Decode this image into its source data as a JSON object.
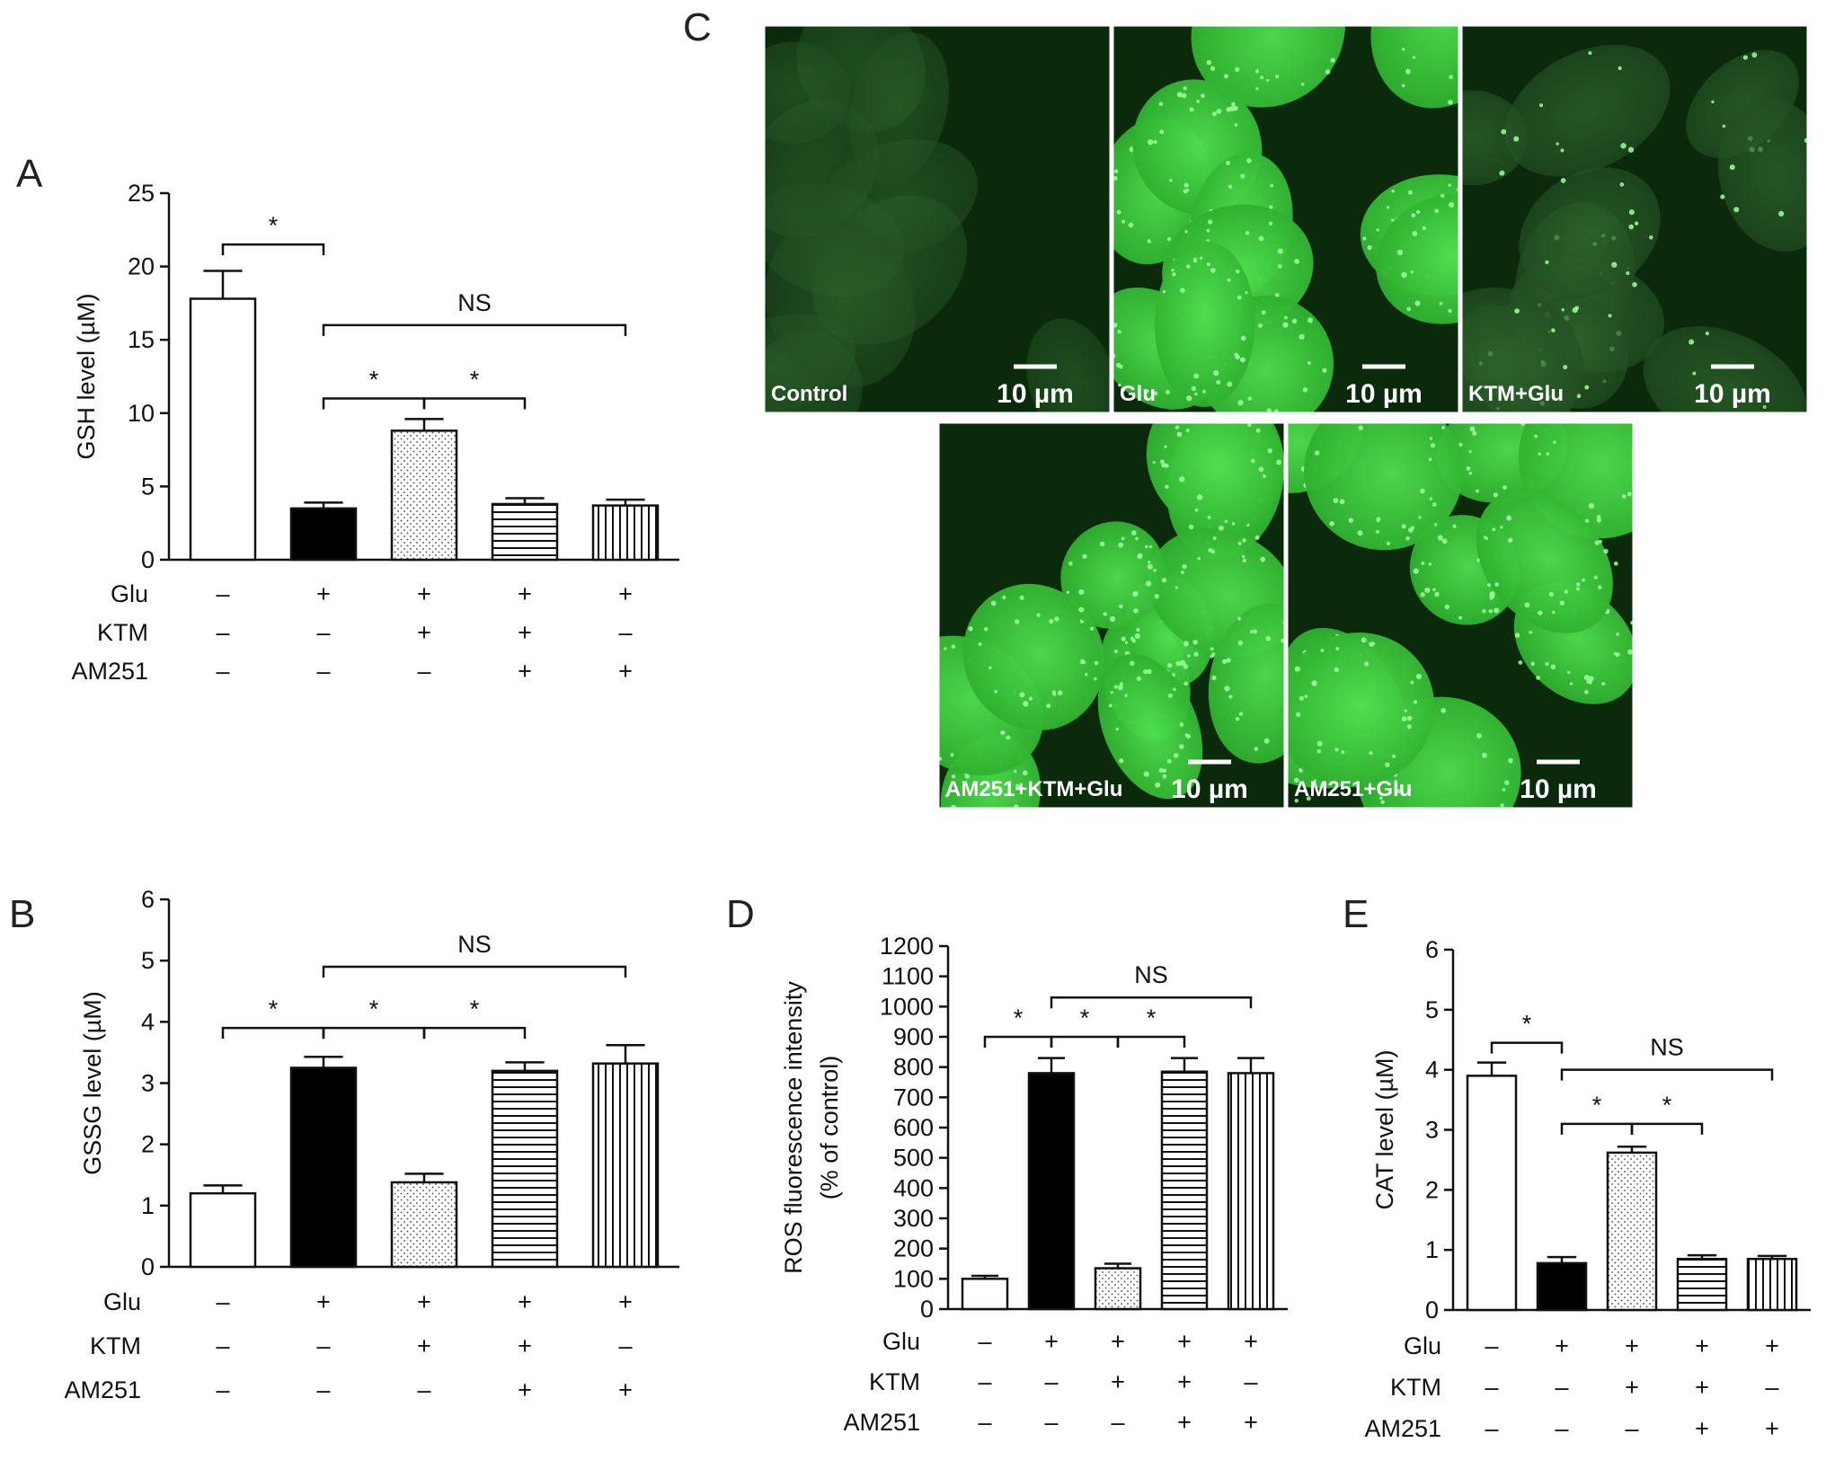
{
  "panel_letters": {
    "A": "A",
    "B": "B",
    "C": "C",
    "D": "D",
    "E": "E"
  },
  "condition_labels": [
    "Glu",
    "KTM",
    "AM251"
  ],
  "plus": "+",
  "minus": "–",
  "colors": {
    "fill_black": "#000000",
    "stroke": "#111111",
    "fluor_dark": "#0b2a0b",
    "fluor_bright": "#3bd43b"
  },
  "chart_data": [
    {
      "id": "A",
      "type": "bar",
      "ylabel": "GSH level (µM)",
      "ylim": [
        0,
        25
      ],
      "yticks": [
        0,
        5,
        10,
        15,
        20,
        25
      ],
      "categories": [
        "Control",
        "Glu",
        "KTM+Glu",
        "AM251+KTM+Glu",
        "AM251+Glu"
      ],
      "values": [
        17.8,
        3.5,
        8.8,
        3.8,
        3.7
      ],
      "errors": [
        1.9,
        0.4,
        0.8,
        0.4,
        0.4
      ],
      "fills": [
        "white",
        "black",
        "dots",
        "hlines",
        "vlines"
      ],
      "conditions": {
        "Glu": [
          "-",
          "+",
          "+",
          "+",
          "+"
        ],
        "KTM": [
          "-",
          "-",
          "+",
          "+",
          "-"
        ],
        "AM251": [
          "-",
          "-",
          "-",
          "+",
          "+"
        ]
      },
      "annotations": [
        {
          "from": 0,
          "to": 1,
          "level": 21.5,
          "text": "*"
        },
        {
          "from": 1,
          "to": 4,
          "level": 16.0,
          "text": "NS"
        },
        {
          "from": 1,
          "to": 2,
          "level": 11.0,
          "text": "*"
        },
        {
          "from": 2,
          "to": 3,
          "level": 11.0,
          "text": "*"
        }
      ]
    },
    {
      "id": "B",
      "type": "bar",
      "ylabel": "GSSG level (µM)",
      "ylim": [
        0,
        6
      ],
      "yticks": [
        0,
        1,
        2,
        3,
        4,
        5,
        6
      ],
      "categories": [
        "Control",
        "Glu",
        "KTM+Glu",
        "AM251+KTM+Glu",
        "AM251+Glu"
      ],
      "values": [
        1.2,
        3.25,
        1.38,
        3.2,
        3.32
      ],
      "errors": [
        0.13,
        0.18,
        0.14,
        0.14,
        0.3
      ],
      "fills": [
        "white",
        "black",
        "dots",
        "hlines",
        "vlines"
      ],
      "conditions": {
        "Glu": [
          "-",
          "+",
          "+",
          "+",
          "+"
        ],
        "KTM": [
          "-",
          "-",
          "+",
          "+",
          "-"
        ],
        "AM251": [
          "-",
          "-",
          "-",
          "+",
          "+"
        ]
      },
      "annotations": [
        {
          "from": 0,
          "to": 1,
          "level": 3.9,
          "text": "*"
        },
        {
          "from": 1,
          "to": 4,
          "level": 4.9,
          "text": "NS"
        },
        {
          "from": 1,
          "to": 2,
          "level": 3.9,
          "text": "*"
        },
        {
          "from": 2,
          "to": 3,
          "level": 3.9,
          "text": "*"
        }
      ]
    },
    {
      "id": "D",
      "type": "bar",
      "ylabel": "ROS fluorescence intensity",
      "ylabel2": "(% of control)",
      "ylim": [
        0,
        1200
      ],
      "yticks": [
        0,
        100,
        200,
        300,
        400,
        500,
        600,
        700,
        800,
        900,
        1000,
        1100,
        1200
      ],
      "categories": [
        "Control",
        "Glu",
        "KTM+Glu",
        "AM251+KTM+Glu",
        "AM251+Glu"
      ],
      "values": [
        100,
        780,
        135,
        785,
        780
      ],
      "errors": [
        10,
        50,
        15,
        45,
        50
      ],
      "fills": [
        "white",
        "black",
        "dots",
        "hlines",
        "vlines"
      ],
      "conditions": {
        "Glu": [
          "-",
          "+",
          "+",
          "+",
          "+"
        ],
        "KTM": [
          "-",
          "-",
          "+",
          "+",
          "-"
        ],
        "AM251": [
          "-",
          "-",
          "-",
          "+",
          "+"
        ]
      },
      "annotations": [
        {
          "from": 0,
          "to": 1,
          "level": 900,
          "text": "*"
        },
        {
          "from": 1,
          "to": 4,
          "level": 1030,
          "text": "NS"
        },
        {
          "from": 1,
          "to": 2,
          "level": 900,
          "text": "*"
        },
        {
          "from": 2,
          "to": 3,
          "level": 900,
          "text": "*"
        }
      ]
    },
    {
      "id": "E",
      "type": "bar",
      "ylabel": "CAT level (µM)",
      "ylim": [
        0,
        6
      ],
      "yticks": [
        0,
        1,
        2,
        3,
        4,
        5,
        6
      ],
      "categories": [
        "Control",
        "Glu",
        "KTM+Glu",
        "AM251+KTM+Glu",
        "AM251+Glu"
      ],
      "values": [
        3.9,
        0.78,
        2.62,
        0.85,
        0.85
      ],
      "errors": [
        0.22,
        0.1,
        0.1,
        0.06,
        0.05
      ],
      "fills": [
        "white",
        "black",
        "dots",
        "hlines",
        "vlines"
      ],
      "conditions": {
        "Glu": [
          "-",
          "+",
          "+",
          "+",
          "+"
        ],
        "KTM": [
          "-",
          "-",
          "+",
          "+",
          "-"
        ],
        "AM251": [
          "-",
          "-",
          "-",
          "+",
          "+"
        ]
      },
      "annotations": [
        {
          "from": 0,
          "to": 1,
          "level": 4.45,
          "text": "*"
        },
        {
          "from": 1,
          "to": 4,
          "level": 4.0,
          "text": "NS"
        },
        {
          "from": 1,
          "to": 2,
          "level": 3.1,
          "text": "*"
        },
        {
          "from": 2,
          "to": 3,
          "level": 3.1,
          "text": "*"
        }
      ]
    }
  ],
  "micrographs": [
    {
      "label": "Control",
      "scale": "10 µm",
      "brightness": 0.2
    },
    {
      "label": "Glu",
      "scale": "10 µm",
      "brightness": 0.95
    },
    {
      "label": "KTM+Glu",
      "scale": "10 µm",
      "brightness": 0.35
    },
    {
      "label": "AM251+KTM+Glu",
      "scale": "10 µm",
      "brightness": 0.85
    },
    {
      "label": "AM251+Glu",
      "scale": "10 µm",
      "brightness": 0.85
    }
  ]
}
